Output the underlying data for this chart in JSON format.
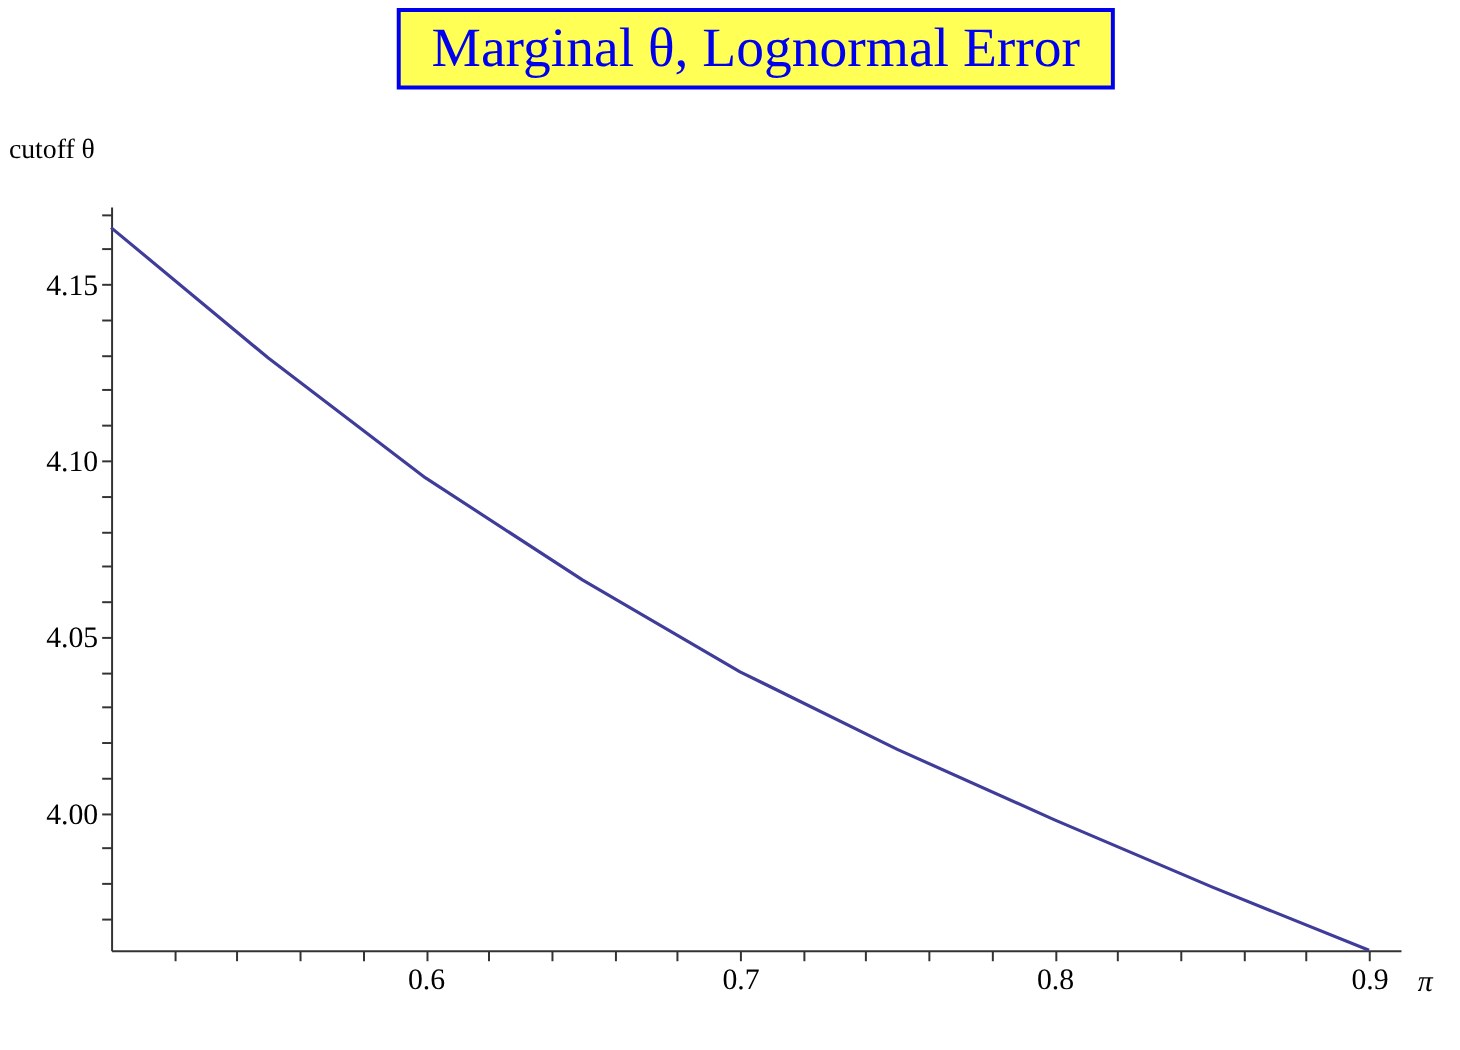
{
  "chart_data": {
    "type": "line",
    "title": "Marginal θ, Lognormal Error",
    "xlabel": "π",
    "ylabel": "cutoff θ",
    "x": [
      0.5,
      0.55,
      0.6,
      0.65,
      0.7,
      0.75,
      0.8,
      0.85,
      0.9
    ],
    "series": [
      {
        "color": "#3f3d99",
        "values": [
          4.166,
          4.129,
          4.095,
          4.066,
          4.04,
          4.018,
          3.998,
          3.979,
          3.961
        ]
      }
    ],
    "xlim": [
      0.5,
      0.91
    ],
    "ylim": [
      3.961,
      4.172
    ],
    "xticks": [
      {
        "value": 0.52,
        "label": null
      },
      {
        "value": 0.54,
        "label": null
      },
      {
        "value": 0.56,
        "label": null
      },
      {
        "value": 0.58,
        "label": null
      },
      0.6,
      {
        "value": 0.62,
        "label": null
      },
      {
        "value": 0.64,
        "label": null
      },
      {
        "value": 0.66,
        "label": null
      },
      {
        "value": 0.68,
        "label": null
      },
      0.7,
      {
        "value": 0.72,
        "label": null
      },
      {
        "value": 0.74,
        "label": null
      },
      {
        "value": 0.76,
        "label": null
      },
      {
        "value": 0.78,
        "label": null
      },
      0.8,
      {
        "value": 0.82,
        "label": null
      },
      {
        "value": 0.84,
        "label": null
      },
      {
        "value": 0.86,
        "label": null
      },
      {
        "value": 0.88,
        "label": null
      },
      0.9
    ],
    "yticks": [
      {
        "value": 3.97,
        "label": null
      },
      {
        "value": 3.98,
        "label": null
      },
      {
        "value": 3.99,
        "label": null
      },
      {
        "value": 4.0,
        "label": "4.00"
      },
      {
        "value": 4.01,
        "label": null
      },
      {
        "value": 4.02,
        "label": null
      },
      {
        "value": 4.03,
        "label": null
      },
      {
        "value": 4.04,
        "label": null
      },
      {
        "value": 4.05,
        "label": "4.05"
      },
      {
        "value": 4.06,
        "label": null
      },
      {
        "value": 4.07,
        "label": null
      },
      {
        "value": 4.08,
        "label": null
      },
      {
        "value": 4.09,
        "label": null
      },
      {
        "value": 4.1,
        "label": "4.10"
      },
      {
        "value": 4.11,
        "label": null
      },
      {
        "value": 4.12,
        "label": null
      },
      {
        "value": 4.13,
        "label": null
      },
      {
        "value": 4.14,
        "label": null
      },
      {
        "value": 4.15,
        "label": "4.15"
      },
      {
        "value": 4.16,
        "label": null
      },
      {
        "value": 4.17,
        "label": null
      }
    ],
    "grid": false,
    "marker": "none",
    "line_style": "solid"
  }
}
